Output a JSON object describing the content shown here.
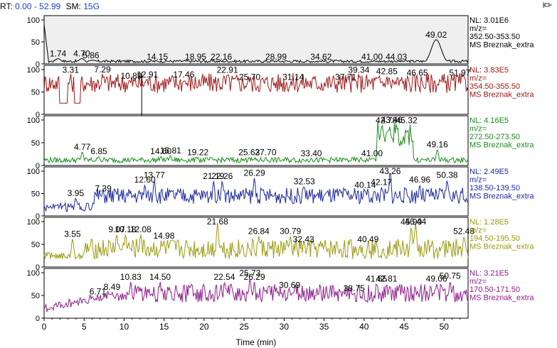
{
  "header": {
    "rt_label": "RT:",
    "rt_value": "0.00 - 52.99",
    "sm_label": "SM:",
    "sm_value": "15G"
  },
  "icons": {
    "pin": "pin-icon"
  },
  "chart_data": {
    "type": "line",
    "xlabel": "Time (min)",
    "xlim": [
      0,
      53
    ],
    "x_ticks": [
      0,
      5,
      10,
      15,
      20,
      25,
      30,
      35,
      40,
      45,
      50
    ],
    "y_ticks": [
      0,
      50,
      100
    ],
    "ylim": [
      0,
      100
    ],
    "panels": [
      {
        "color": "#000000",
        "shaded": true,
        "nl": "NL: 3.01E6",
        "mz_label": "m/z=",
        "mz_range": "352.50-353.50",
        "scan": "MS Breznak_extra",
        "peaks": [
          {
            "t": 1.74,
            "label": "1.74",
            "y": 12
          },
          {
            "t": 4.7,
            "label": "4.70",
            "y": 12
          },
          {
            "t": 5.86,
            "label": "5.86",
            "y": 8
          },
          {
            "t": 14.15,
            "label": "14.15",
            "y": 5
          },
          {
            "t": 18.95,
            "label": "18.95",
            "y": 5
          },
          {
            "t": 22.16,
            "label": "22.16",
            "y": 5
          },
          {
            "t": 28.99,
            "label": "28.99",
            "y": 5
          },
          {
            "t": 34.62,
            "label": "34.62",
            "y": 5
          },
          {
            "t": 41.0,
            "label": "41.00",
            "y": 5
          },
          {
            "t": 44.03,
            "label": "44.03",
            "y": 5
          },
          {
            "t": 49.02,
            "label": "49.02",
            "y": 55
          }
        ]
      },
      {
        "color": "#a01818",
        "shaded": false,
        "nl": "NL: 3.83E5",
        "mz_label": "m/z=",
        "mz_range": "354.50-355.50",
        "scan": "MS Breznak_extra",
        "peaks": [
          {
            "t": 3.31,
            "label": "3.31",
            "y": 88
          },
          {
            "t": 7.29,
            "label": "7.29",
            "y": 92
          },
          {
            "t": 10.89,
            "label": "10.89",
            "y": 75
          },
          {
            "t": 12.91,
            "label": "12.91",
            "y": 78
          },
          {
            "t": 17.46,
            "label": "17.46",
            "y": 78
          },
          {
            "t": 22.91,
            "label": "22.91",
            "y": 88
          },
          {
            "t": 25.7,
            "label": "25.70",
            "y": 72
          },
          {
            "t": 31.14,
            "label": "31.14",
            "y": 72
          },
          {
            "t": 37.71,
            "label": "37.71",
            "y": 72
          },
          {
            "t": 39.34,
            "label": "39.34",
            "y": 88
          },
          {
            "t": 42.85,
            "label": "42.85",
            "y": 85
          },
          {
            "t": 46.65,
            "label": "46.65",
            "y": 82
          },
          {
            "t": 51.97,
            "label": "51.97",
            "y": 82
          }
        ]
      },
      {
        "color": "#1a8c1a",
        "shaded": false,
        "nl": "NL: 4.16E5",
        "mz_label": "m/z=",
        "mz_range": "272.50-273.50",
        "scan": "MS Breznak_extra",
        "peaks": [
          {
            "t": 4.77,
            "label": "4.77",
            "y": 30
          },
          {
            "t": 6.85,
            "label": "6.85",
            "y": 20
          },
          {
            "t": 14.6,
            "label": "14.60",
            "y": 20
          },
          {
            "t": 15.81,
            "label": "15.81",
            "y": 22
          },
          {
            "t": 19.22,
            "label": "19.22",
            "y": 18
          },
          {
            "t": 25.63,
            "label": "25.63",
            "y": 18
          },
          {
            "t": 27.7,
            "label": "27.70",
            "y": 18
          },
          {
            "t": 33.4,
            "label": "33.40",
            "y": 16
          },
          {
            "t": 41.0,
            "label": "41.00",
            "y": 16
          },
          {
            "t": 42.78,
            "label": "42.78",
            "y": 88
          },
          {
            "t": 43.46,
            "label": "43.46",
            "y": 100
          },
          {
            "t": 45.32,
            "label": "45.32",
            "y": 88
          },
          {
            "t": 49.16,
            "label": "49.16",
            "y": 35
          }
        ]
      },
      {
        "color": "#1c2a9c",
        "shaded": false,
        "nl": "NL: 2.49E5",
        "mz_label": "m/z=",
        "mz_range": "138.50-139.50",
        "scan": "MS Breznak_extra",
        "peaks": [
          {
            "t": 3.95,
            "label": "3.95",
            "y": 40
          },
          {
            "t": 7.39,
            "label": "7.39",
            "y": 50
          },
          {
            "t": 12.6,
            "label": "12.60",
            "y": 70
          },
          {
            "t": 13.77,
            "label": "13.77",
            "y": 80
          },
          {
            "t": 21.19,
            "label": "21.19",
            "y": 78
          },
          {
            "t": 22.26,
            "label": "22.26",
            "y": 78
          },
          {
            "t": 26.29,
            "label": "26.29",
            "y": 85
          },
          {
            "t": 32.53,
            "label": "32.53",
            "y": 66
          },
          {
            "t": 40.14,
            "label": "40.14",
            "y": 58
          },
          {
            "t": 42.17,
            "label": "42.17",
            "y": 64
          },
          {
            "t": 43.26,
            "label": "43.26",
            "y": 100
          },
          {
            "t": 46.96,
            "label": "46.96",
            "y": 70
          },
          {
            "t": 50.38,
            "label": "50.38",
            "y": 80
          }
        ]
      },
      {
        "color": "#9a9a10",
        "shaded": false,
        "nl": "NL: 1.28E5",
        "mz_label": "m/z=",
        "mz_range": "194.50-195.50",
        "scan": "MS Breznak_extra",
        "peaks": [
          {
            "t": 3.55,
            "label": "3.55",
            "y": 62
          },
          {
            "t": 9.07,
            "label": "9.07",
            "y": 72
          },
          {
            "t": 10.18,
            "label": "10.18",
            "y": 72
          },
          {
            "t": 12.08,
            "label": "12.08",
            "y": 72
          },
          {
            "t": 14.98,
            "label": "14.98",
            "y": 58
          },
          {
            "t": 21.68,
            "label": "21.68",
            "y": 95
          },
          {
            "t": 26.84,
            "label": "26.84",
            "y": 68
          },
          {
            "t": 30.79,
            "label": "30.79",
            "y": 68
          },
          {
            "t": 32.43,
            "label": "32.43",
            "y": 50
          },
          {
            "t": 40.49,
            "label": "40.49",
            "y": 50
          },
          {
            "t": 45.9,
            "label": "45.90",
            "y": 88
          },
          {
            "t": 46.44,
            "label": "46.44",
            "y": 96
          },
          {
            "t": 52.48,
            "label": "52.48",
            "y": 68
          }
        ]
      },
      {
        "color": "#8c1c8c",
        "shaded": false,
        "nl": "NL: 3.21E5",
        "mz_label": "m/z=",
        "mz_range": "170.50-171.50",
        "scan": "MS Breznak_extra",
        "peaks": [
          {
            "t": 6.71,
            "label": "6.71",
            "y": 48
          },
          {
            "t": 8.49,
            "label": "8.49",
            "y": 58
          },
          {
            "t": 10.83,
            "label": "10.83",
            "y": 80
          },
          {
            "t": 14.5,
            "label": "14.50",
            "y": 80
          },
          {
            "t": 22.54,
            "label": "22.54",
            "y": 80
          },
          {
            "t": 25.73,
            "label": "25.73",
            "y": 88
          },
          {
            "t": 26.29,
            "label": "26.29",
            "y": 80
          },
          {
            "t": 30.69,
            "label": "30.69",
            "y": 62
          },
          {
            "t": 38.75,
            "label": "38.75",
            "y": 55
          },
          {
            "t": 41.55,
            "label": "41.55",
            "y": 76
          },
          {
            "t": 42.81,
            "label": "42.81",
            "y": 76
          },
          {
            "t": 49.06,
            "label": "49.06",
            "y": 76
          },
          {
            "t": 50.75,
            "label": "50.75",
            "y": 82
          }
        ]
      }
    ]
  }
}
